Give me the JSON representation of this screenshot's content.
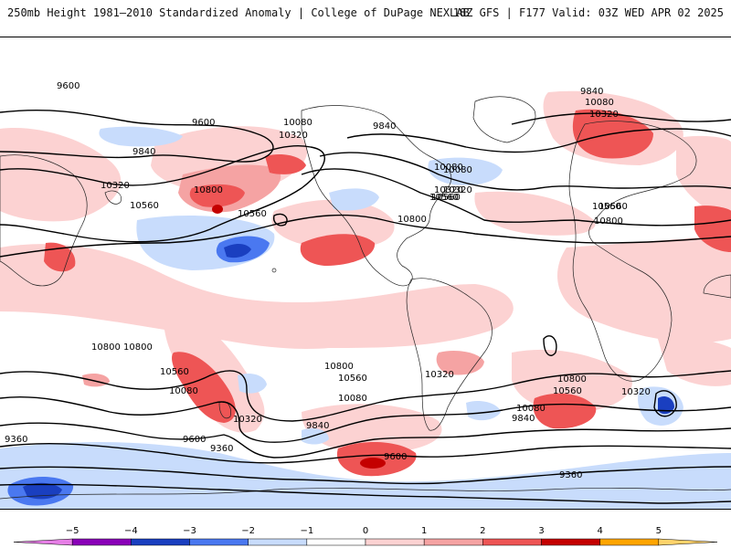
{
  "header": {
    "left_title": "250mb Height 1981–2010 Standardized Anomaly | College of DuPage NEXLAB",
    "right_title": "18Z GFS | F177 Valid: 03Z WED APR 02 2025"
  },
  "map": {
    "field": "250mb height standardized anomaly",
    "contour_labels": [
      "9600",
      "9600",
      "9840",
      "10080",
      "10320",
      "10800",
      "10320",
      "10560",
      "10560",
      "9840",
      "10080",
      "10320",
      "9840",
      "10080",
      "10320",
      "10560",
      "10080",
      "10320",
      "10560",
      "10800",
      "10800",
      "10560",
      "10800",
      "10560",
      "10080",
      "10320",
      "10800",
      "10560",
      "10080",
      "10320",
      "9840",
      "9600",
      "9360",
      "9360",
      "9600",
      "10320",
      "10800",
      "10560",
      "10080",
      "9840",
      "9360",
      "10800",
      "10560"
    ],
    "colors": {
      "neg5": "#e67ee6",
      "neg4": "#8a00b8",
      "neg3": "#1a3fc0",
      "neg2": "#4a78f0",
      "neg1": "#c8dcfc",
      "pos1": "#fcd2d2",
      "pos2": "#f5a3a3",
      "pos3": "#ee5555",
      "pos4": "#c40000",
      "pos5": "#ffa500"
    }
  },
  "colorbar": {
    "ticks": [
      "−5",
      "−4",
      "−3",
      "−2",
      "−1",
      "0",
      "1",
      "2",
      "3",
      "4",
      "5"
    ],
    "colors": [
      "#e67ee6",
      "#8a00b8",
      "#1a3fc0",
      "#4a78f0",
      "#c8dcfc",
      "#ffffff",
      "#fcd2d2",
      "#f5a3a3",
      "#ee5555",
      "#c40000",
      "#ffa500",
      "#ffd36b"
    ]
  }
}
